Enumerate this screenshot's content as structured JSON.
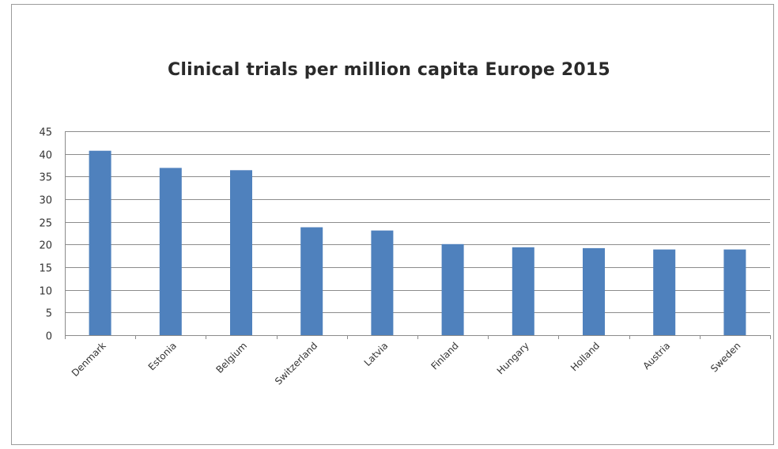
{
  "chart_data": {
    "type": "bar",
    "title": "Clinical trials per million capita Europe 2015",
    "xlabel": "",
    "ylabel": "",
    "categories": [
      "Denmark",
      "Estonia",
      "Belgium",
      "Switzerland",
      "Latvia",
      "Finland",
      "Hungary",
      "Holland",
      "Austria",
      "Sweden"
    ],
    "values": [
      40.7,
      36.9,
      36.4,
      23.8,
      23.1,
      20.1,
      19.4,
      19.2,
      18.9,
      18.9
    ],
    "ylim": [
      0,
      45
    ],
    "yticks": [
      0,
      5,
      10,
      15,
      20,
      25,
      30,
      35,
      40,
      45
    ],
    "grid": true,
    "legend": "none",
    "bar_color": "#4f81bd",
    "gridline_color": "#8c8c8c"
  }
}
